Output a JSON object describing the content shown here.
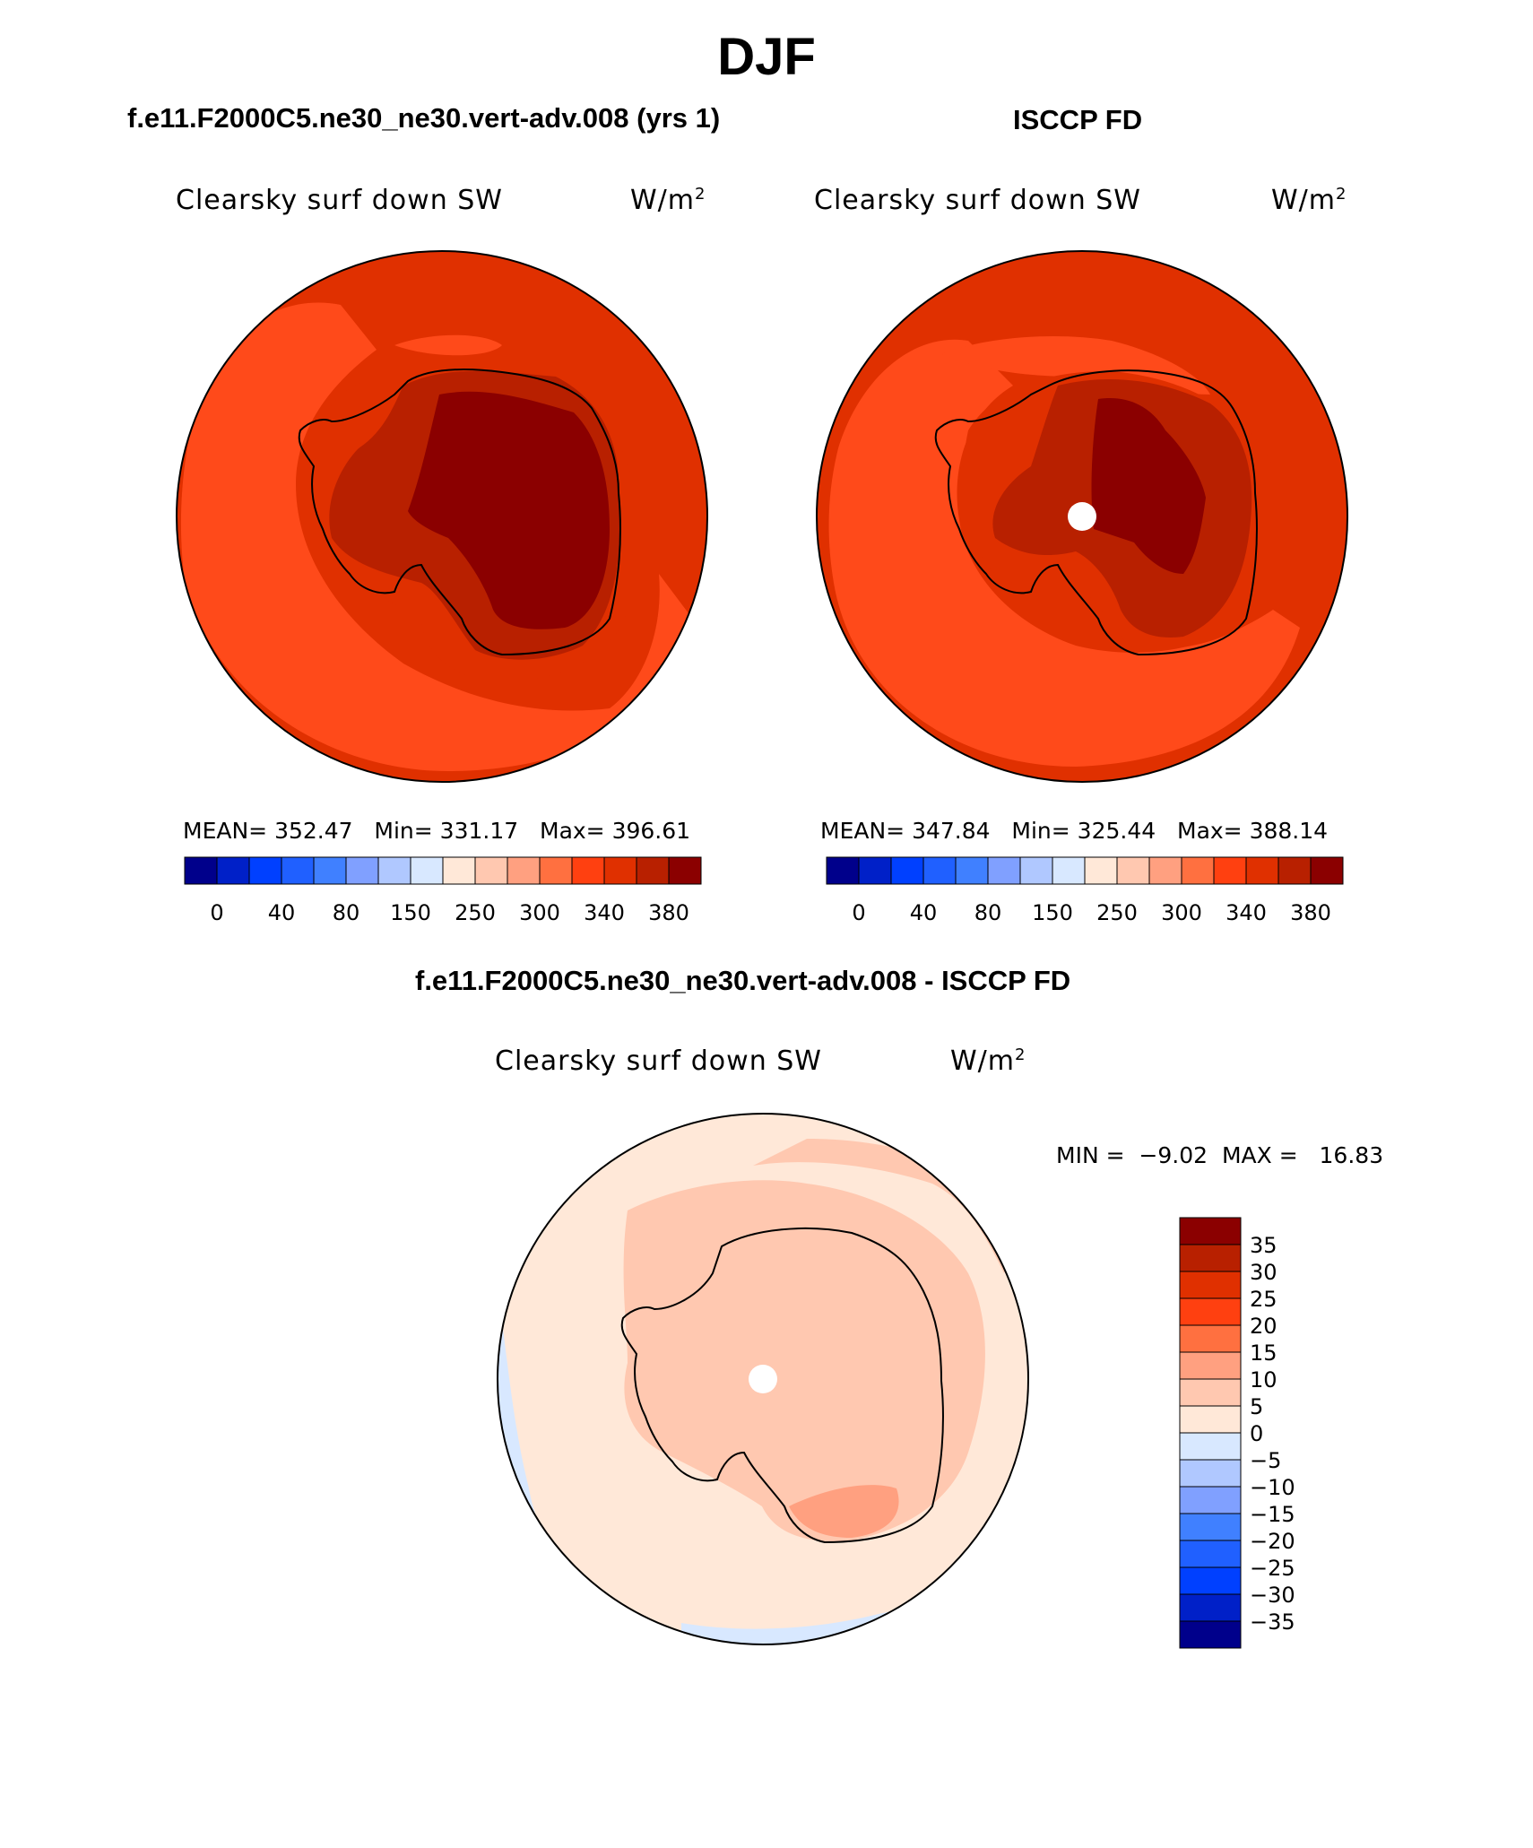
{
  "figure": {
    "title": "DJF"
  },
  "panels": [
    {
      "case_title": "f.e11.F2000C5.ne30_ne30.vert-adv.008 (yrs 1)",
      "field_label": "Clearsky surf down SW",
      "units_base": "W/m",
      "units_exp": "2",
      "stats": {
        "mean_label": "MEAN=",
        "mean": "352.47",
        "min_label": "Min=",
        "min": "331.17",
        "max_label": "Max=",
        "max": "396.61"
      }
    },
    {
      "case_title": "ISCCP FD",
      "field_label": "Clearsky surf down SW",
      "units_base": "W/m",
      "units_exp": "2",
      "stats": {
        "mean_label": "MEAN=",
        "mean": "347.84",
        "min_label": "Min=",
        "min": "325.44",
        "max_label": "Max=",
        "max": "388.14"
      }
    },
    {
      "case_title": "f.e11.F2000C5.ne30_ne30.vert-adv.008 - ISCCP FD",
      "field_label": "Clearsky surf down SW",
      "units_base": "W/m",
      "units_exp": "2",
      "stats": {
        "min_label": "MIN =",
        "min": "−9.02",
        "max_label": "MAX =",
        "max": "16.83"
      }
    }
  ],
  "colorbars": {
    "absolute": {
      "colors": [
        "#00008b",
        "#0020c8",
        "#0040ff",
        "#2060ff",
        "#4080ff",
        "#80a0ff",
        "#b0c8ff",
        "#d8e8ff",
        "#ffe8d8",
        "#ffc8b0",
        "#ffa080",
        "#ff7040",
        "#ff4010",
        "#e03000",
        "#b82000",
        "#8b0000"
      ],
      "ticks": [
        "0",
        "40",
        "80",
        "150",
        "250",
        "300",
        "340",
        "380"
      ]
    },
    "difference": {
      "colors": [
        "#8b0000",
        "#b82000",
        "#e03000",
        "#ff4010",
        "#ff7040",
        "#ffa080",
        "#ffc8b0",
        "#ffe8d8",
        "#d8e8ff",
        "#b0c8ff",
        "#80a0ff",
        "#4080ff",
        "#2060ff",
        "#0040ff",
        "#0020c8",
        "#00008b"
      ],
      "ticks": [
        "35",
        "30",
        "25",
        "20",
        "15",
        "10",
        "5",
        "0",
        "−5",
        "−10",
        "−15",
        "−20",
        "−25",
        "−30",
        "−35"
      ]
    }
  },
  "map_colors": {
    "ocean_outer": "#e03000",
    "ocean_mid": "#ff4a1a",
    "coast_band": "#e03000",
    "ice_mid": "#b82000",
    "ice_core": "#8b0000",
    "diff_base": "#ffe8d8",
    "diff_pos": "#ffc8b0",
    "diff_strong": "#ffa080",
    "diff_neg": "#d8e8ff"
  }
}
